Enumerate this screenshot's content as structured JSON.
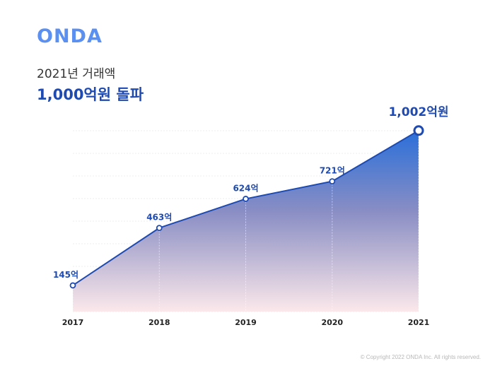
{
  "logo": "ONDA",
  "header": {
    "subtitle": "2021년 거래액",
    "title": "1,000억원 돌파"
  },
  "chart_data": {
    "type": "area",
    "categories": [
      "2017",
      "2018",
      "2019",
      "2020",
      "2021"
    ],
    "values": [
      145,
      463,
      624,
      721,
      1002
    ],
    "value_labels": [
      "145억",
      "463억",
      "624억",
      "721억",
      "1,002억원"
    ],
    "ylim": [
      0,
      1100
    ],
    "grid": true,
    "colors": {
      "line": "#1f4bb0",
      "fill_top": "#2a6fd9",
      "fill_bottom": "#fbe8ea"
    }
  },
  "footer": {
    "copyright": "© Copyright 2022 ONDA Inc. All rights reserved."
  }
}
